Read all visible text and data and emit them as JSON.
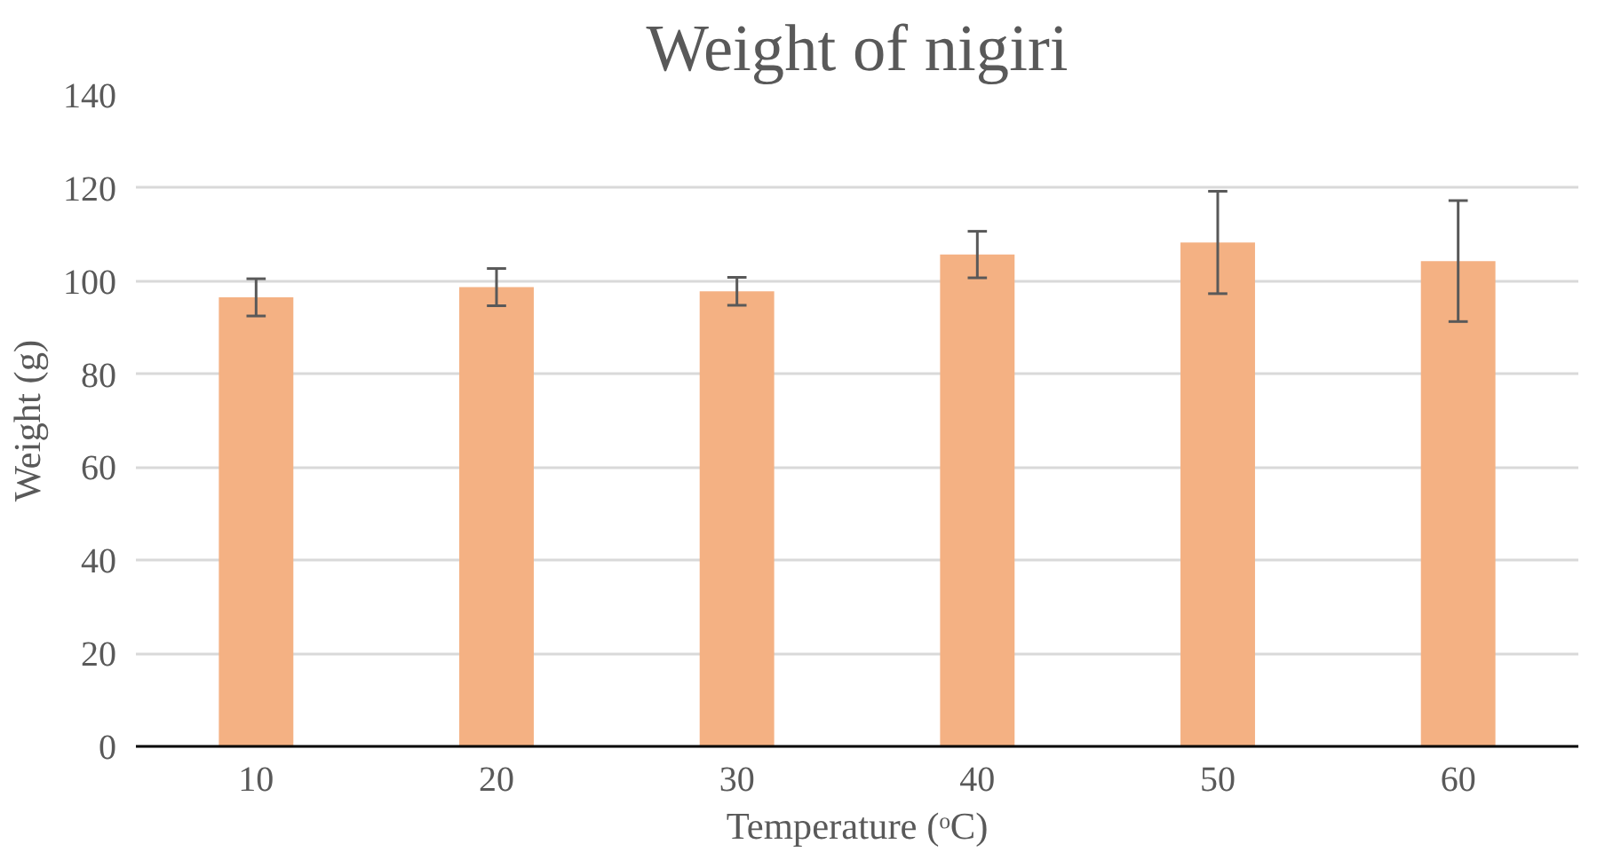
{
  "chart_data": {
    "type": "bar",
    "title": "Weight of nigiri",
    "xlabel": "Temperature (ᵒC)",
    "ylabel": "Weight (g)",
    "categories": [
      "10",
      "20",
      "30",
      "40",
      "50",
      "60"
    ],
    "values": [
      96.5,
      98.7,
      97.8,
      105.7,
      108.3,
      104.3
    ],
    "errors": [
      4,
      4,
      3,
      5,
      11,
      13
    ],
    "color": "#f4b183",
    "ylim": [
      0,
      140
    ],
    "yticks": [
      0,
      20,
      40,
      60,
      80,
      100,
      120,
      140
    ],
    "grid": "y"
  }
}
